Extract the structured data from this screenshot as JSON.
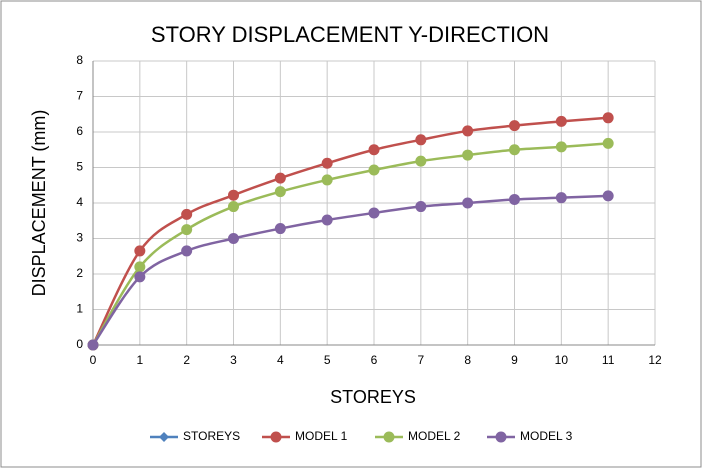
{
  "chart_data": {
    "type": "line",
    "title": "STORY DISPLACEMENT Y-DIRECTION",
    "x_label": "STOREYS",
    "y_label": "DISPLACEMENT (mm)",
    "x": [
      0,
      1,
      2,
      3,
      4,
      5,
      6,
      7,
      8,
      9,
      10,
      11
    ],
    "series": [
      {
        "name": "STOREYS",
        "color": "#4f81bd",
        "marker": "diamond",
        "values": [
          null,
          null,
          null,
          null,
          null,
          null,
          null,
          null,
          null,
          null,
          null,
          null
        ]
      },
      {
        "name": "MODEL 1",
        "color": "#c0504d",
        "marker": "circle",
        "values": [
          0,
          2.65,
          3.68,
          4.22,
          4.7,
          5.12,
          5.5,
          5.78,
          6.03,
          6.18,
          6.3,
          6.4
        ]
      },
      {
        "name": "MODEL 2",
        "color": "#9bbb59",
        "marker": "circle",
        "values": [
          0,
          2.2,
          3.25,
          3.9,
          4.32,
          4.65,
          4.93,
          5.18,
          5.35,
          5.5,
          5.58,
          5.68
        ]
      },
      {
        "name": "MODEL 3",
        "color": "#8064a2",
        "marker": "circle",
        "values": [
          0,
          1.92,
          2.65,
          3.0,
          3.28,
          3.52,
          3.72,
          3.9,
          4.0,
          4.1,
          4.15,
          4.2
        ]
      }
    ],
    "xlim": [
      0,
      12
    ],
    "xticks": [
      0,
      1,
      2,
      3,
      4,
      5,
      6,
      7,
      8,
      9,
      10,
      11,
      12
    ],
    "ylim": [
      0,
      8
    ],
    "yticks": [
      0,
      1,
      2,
      3,
      4,
      5,
      6,
      7,
      8
    ],
    "grid": true,
    "smooth": true,
    "legend": "bottom"
  }
}
